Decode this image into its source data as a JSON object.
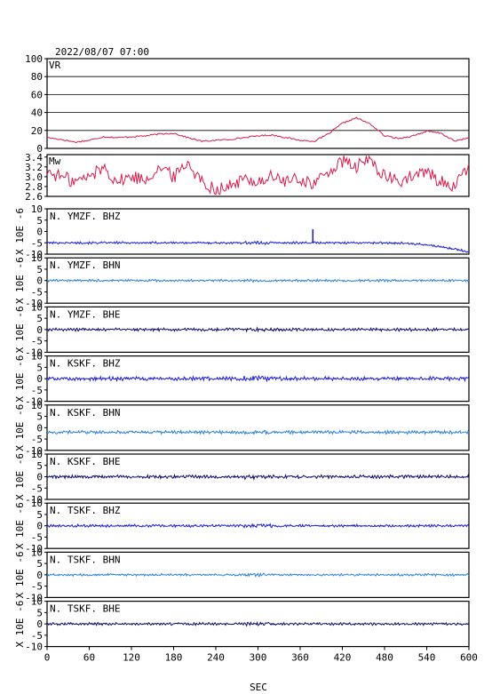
{
  "header": {
    "timestamp": "2022/08/07 07:00"
  },
  "colors": {
    "frame": "#000000",
    "vr": "#d81b4a",
    "mw": "#d81b4a",
    "bhz": "#1a1adf",
    "bhn": "#2a7fdb",
    "bhe": "#0a0a6a",
    "grid": "#000000"
  },
  "chart_data": [
    {
      "type": "line",
      "label": "VR",
      "xlim": [
        0,
        600
      ],
      "ylim": [
        0,
        100
      ],
      "yticks": [
        "0",
        "20",
        "40",
        "60",
        "80",
        "100"
      ],
      "grid": true,
      "x": [
        0,
        20,
        40,
        60,
        80,
        100,
        120,
        140,
        160,
        180,
        200,
        220,
        240,
        260,
        280,
        300,
        320,
        340,
        360,
        380,
        400,
        420,
        440,
        460,
        480,
        500,
        520,
        540,
        560,
        580,
        600
      ],
      "values": [
        12,
        10,
        7,
        9,
        13,
        12,
        13,
        14,
        16,
        17,
        12,
        8,
        9,
        10,
        12,
        14,
        15,
        12,
        9,
        8,
        16,
        28,
        34,
        27,
        14,
        11,
        14,
        19,
        17,
        8,
        12
      ]
    },
    {
      "type": "line",
      "label": "Mw",
      "xlim": [
        0,
        600
      ],
      "ylim": [
        2.6,
        3.45
      ],
      "yticks": [
        "2.6",
        "2.8",
        "3.0",
        "3.2",
        "3.4"
      ],
      "grid": false,
      "x": [
        0,
        20,
        40,
        60,
        80,
        100,
        120,
        140,
        160,
        180,
        200,
        220,
        240,
        260,
        280,
        300,
        320,
        340,
        360,
        380,
        400,
        420,
        440,
        460,
        480,
        500,
        520,
        540,
        560,
        580,
        600
      ],
      "values": [
        3.1,
        3.0,
        2.9,
        3.0,
        3.2,
        2.9,
        3.0,
        2.95,
        3.2,
        3.0,
        3.3,
        2.9,
        2.75,
        2.8,
        2.95,
        2.9,
        3.0,
        2.9,
        2.95,
        2.85,
        3.1,
        3.3,
        3.2,
        3.35,
        3.0,
        2.9,
        3.0,
        3.1,
        2.9,
        2.8,
        3.2
      ]
    }
  ],
  "traces": [
    {
      "label": "N. YMZF. BHZ",
      "ylabel": "X 10E -6",
      "color": "#1a1adf",
      "offset": -5,
      "amplitude": 0.35,
      "spike_x": 378,
      "spike_top": 1,
      "tail_end": -9
    },
    {
      "label": "N. YMZF. BHN",
      "ylabel": "X 10E -6",
      "color": "#2a7fdb",
      "offset": 0,
      "amplitude": 0.35
    },
    {
      "label": "N. YMZF. BHE",
      "ylabel": "X 10E -6",
      "color": "#0a0a6a",
      "offset": 0,
      "amplitude": 0.45
    },
    {
      "label": "N. KSKF. BHZ",
      "ylabel": "X 10E -6",
      "color": "#1a1adf",
      "offset": 0,
      "amplitude": 0.6
    },
    {
      "label": "N. KSKF. BHN",
      "ylabel": "X 10E -6",
      "color": "#2a7fdb",
      "offset": -2,
      "amplitude": 0.5
    },
    {
      "label": "N. KSKF. BHE",
      "ylabel": "X 10E -6",
      "color": "#0a0a6a",
      "offset": 0,
      "amplitude": 0.5
    },
    {
      "label": "N. TSKF. BHZ",
      "ylabel": "X 10E -6",
      "color": "#1a1adf",
      "offset": 0,
      "amplitude": 0.4
    },
    {
      "label": "N. TSKF. BHN",
      "ylabel": "X 10E -6",
      "color": "#2a7fdb",
      "offset": 0,
      "amplitude": 0.35
    },
    {
      "label": "N. TSKF. BHE",
      "ylabel": "X 10E -6",
      "color": "#0a0a6a",
      "offset": 0,
      "amplitude": 0.4
    }
  ],
  "trace_axis": {
    "ylim": [
      -10,
      10
    ],
    "yticks": [
      "-10",
      "-5",
      "0",
      "5",
      "10"
    ]
  },
  "x_axis": {
    "label": "SEC",
    "xlim": [
      0,
      600
    ],
    "ticks": [
      "0",
      "60",
      "120",
      "180",
      "240",
      "300",
      "360",
      "420",
      "480",
      "540",
      "600"
    ]
  }
}
